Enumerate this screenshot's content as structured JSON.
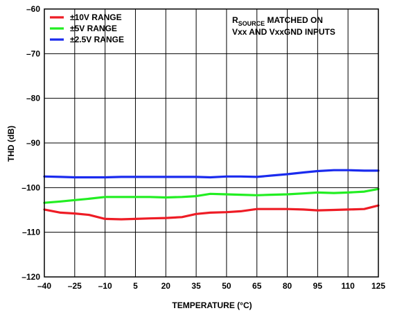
{
  "chart_data": {
    "type": "line",
    "title": "",
    "xlabel": "TEMPERATURE (°C)",
    "ylabel": "THD (dB)",
    "xlim": [
      -40,
      125
    ],
    "ylim": [
      -120,
      -60
    ],
    "xticks": [
      -40,
      -25,
      -10,
      5,
      20,
      35,
      50,
      65,
      80,
      95,
      110,
      125
    ],
    "yticks": [
      -60,
      -70,
      -80,
      -90,
      -100,
      -110,
      -120
    ],
    "x_tick_labels": [
      "–40",
      "–25",
      "–10",
      "5",
      "20",
      "35",
      "50",
      "65",
      "80",
      "95",
      "110",
      "125"
    ],
    "y_tick_labels": [
      "–60",
      "–70",
      "–80",
      "–90",
      "–100",
      "–110",
      "–120"
    ],
    "grid": true,
    "legend_position": "top-left",
    "annotation": {
      "prefix": "R",
      "subscript": "SOURCE",
      "line1_rest": " MATCHED ON",
      "line2": "Vxx AND VxxGND INPUTS"
    },
    "series": [
      {
        "name": "±10V RANGE",
        "color": "#ee1c25",
        "x": [
          -40,
          -32,
          -25,
          -18,
          -10,
          -2,
          5,
          12,
          20,
          28,
          35,
          42,
          50,
          57,
          65,
          72,
          80,
          88,
          95,
          103,
          110,
          118,
          125
        ],
        "y": [
          -104.9,
          -105.6,
          -105.8,
          -106.1,
          -107.0,
          -107.1,
          -107.0,
          -106.9,
          -106.8,
          -106.6,
          -105.9,
          -105.6,
          -105.5,
          -105.3,
          -104.8,
          -104.8,
          -104.8,
          -104.9,
          -105.1,
          -105.0,
          -104.9,
          -104.8,
          -104.0
        ]
      },
      {
        "name": "±5V RANGE",
        "color": "#22ee22",
        "x": [
          -40,
          -32,
          -25,
          -18,
          -10,
          -2,
          5,
          12,
          20,
          28,
          35,
          42,
          50,
          57,
          65,
          72,
          80,
          88,
          95,
          103,
          110,
          118,
          125
        ],
        "y": [
          -103.4,
          -103.1,
          -102.8,
          -102.5,
          -102.1,
          -102.1,
          -102.1,
          -102.1,
          -102.2,
          -102.1,
          -101.9,
          -101.4,
          -101.5,
          -101.6,
          -101.7,
          -101.6,
          -101.5,
          -101.3,
          -101.1,
          -101.2,
          -101.1,
          -100.9,
          -100.3
        ]
      },
      {
        "name": "±2.5V RANGE",
        "color": "#1a2bee",
        "x": [
          -40,
          -32,
          -25,
          -18,
          -10,
          -2,
          5,
          12,
          20,
          28,
          35,
          42,
          50,
          57,
          65,
          72,
          80,
          88,
          95,
          103,
          110,
          118,
          125
        ],
        "y": [
          -97.5,
          -97.6,
          -97.7,
          -97.7,
          -97.7,
          -97.6,
          -97.6,
          -97.6,
          -97.6,
          -97.6,
          -97.6,
          -97.7,
          -97.5,
          -97.5,
          -97.6,
          -97.3,
          -97.0,
          -96.6,
          -96.3,
          -96.1,
          -96.1,
          -96.2,
          -96.2
        ]
      }
    ]
  }
}
